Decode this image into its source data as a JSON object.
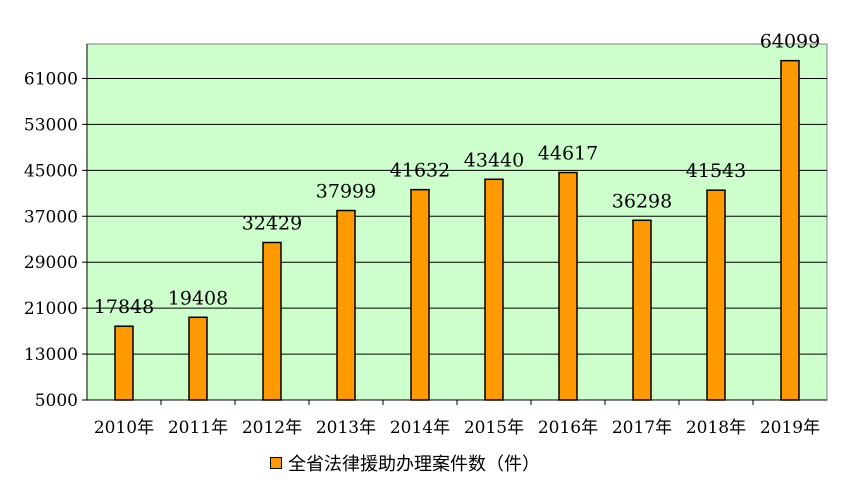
{
  "chart_data": {
    "type": "bar",
    "title": "",
    "xlabel": "",
    "ylabel": "",
    "categories": [
      "2010年",
      "2011年",
      "2012年",
      "2013年",
      "2014年",
      "2015年",
      "2016年",
      "2017年",
      "2018年",
      "2019年"
    ],
    "series": [
      {
        "name": "全省法律援助办理案件数（件）",
        "values": [
          17848,
          19408,
          32429,
          37999,
          41632,
          43440,
          44617,
          36298,
          41543,
          64099
        ]
      }
    ],
    "data_labels": [
      "17848",
      "19408",
      "32429",
      "37999",
      "41632",
      "43440",
      "44617",
      "36298",
      "41543",
      "64099"
    ],
    "ylim": [
      5000,
      67000
    ],
    "yticks": [
      5000,
      13000,
      21000,
      29000,
      37000,
      45000,
      53000,
      61000
    ],
    "ytick_labels": [
      "5000",
      "13000",
      "21000",
      "29000",
      "37000",
      "45000",
      "53000",
      "61000"
    ],
    "grid": true,
    "legend_position": "bottom-center",
    "colors": {
      "bar": "#FF9900",
      "plot_background": "#CCFFCC",
      "gridline": "#000000"
    }
  }
}
